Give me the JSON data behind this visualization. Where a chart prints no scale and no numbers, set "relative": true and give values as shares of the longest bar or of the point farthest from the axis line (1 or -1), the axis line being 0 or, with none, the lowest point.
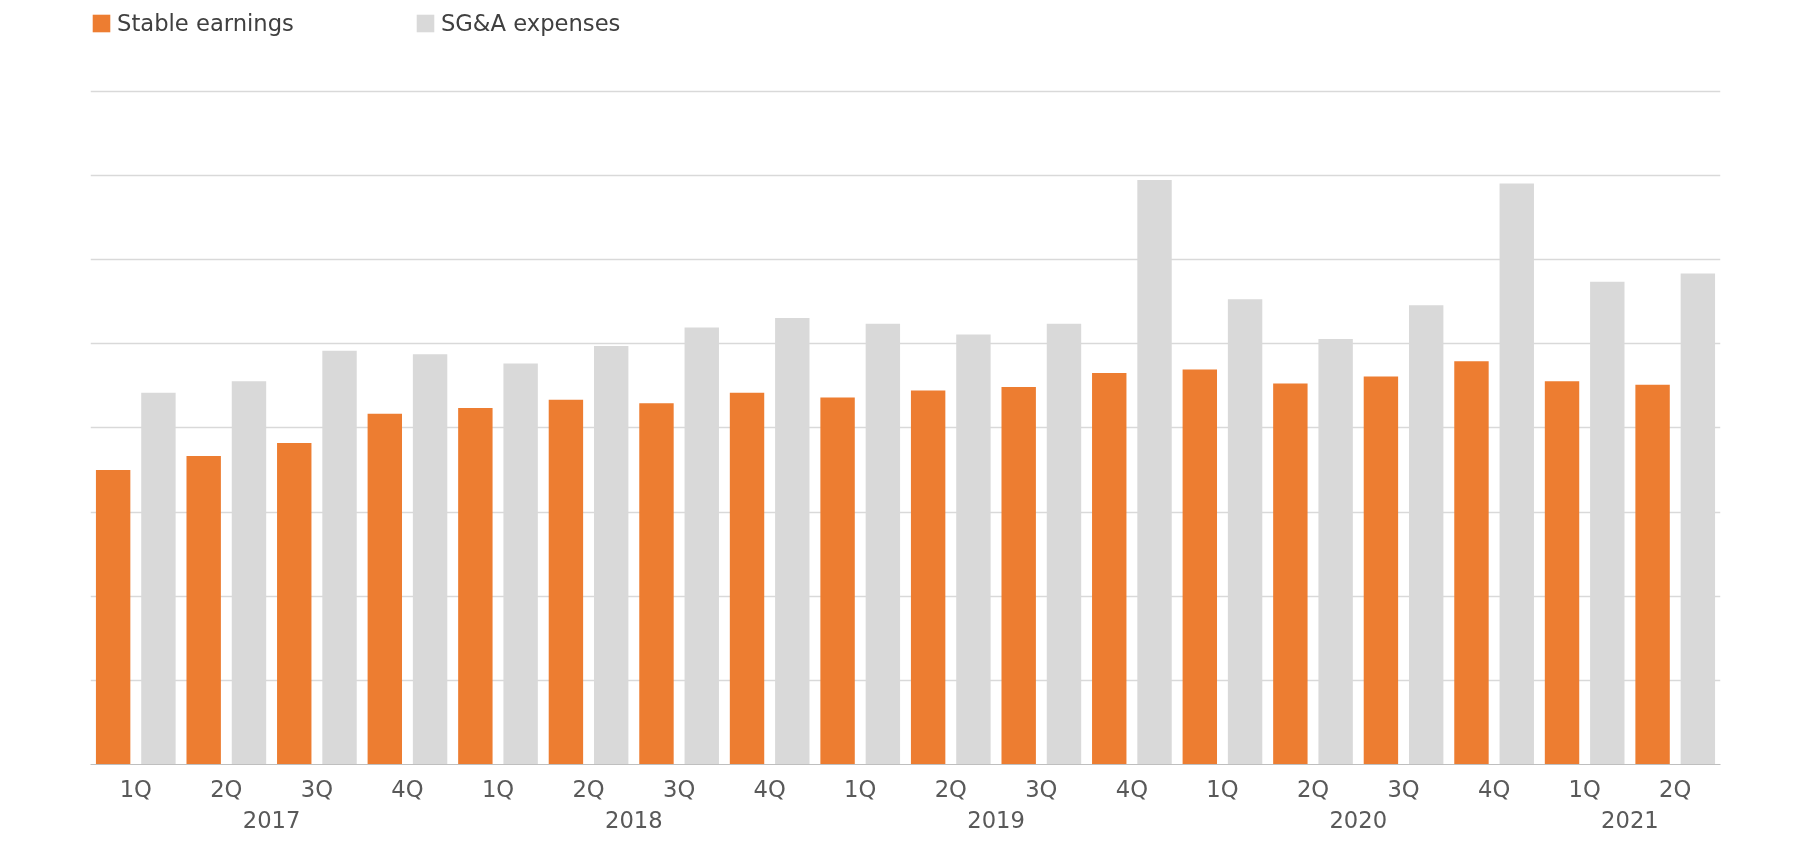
{
  "chart_data": {
    "type": "bar",
    "relative": true,
    "grid": "y",
    "legend": "top left",
    "categories": [
      "1Q",
      "2Q",
      "3Q",
      "4Q",
      "1Q",
      "2Q",
      "3Q",
      "4Q",
      "1Q",
      "2Q",
      "3Q",
      "4Q",
      "1Q",
      "2Q",
      "3Q",
      "4Q",
      "1Q",
      "2Q"
    ],
    "annotations": [
      "2017",
      "2018",
      "2019",
      "2020",
      "2021"
    ],
    "series": [
      {
        "name": "Stable earnings",
        "color": "#ed7d31",
        "values": [
          0.504,
          0.528,
          0.55,
          0.6,
          0.61,
          0.624,
          0.618,
          0.636,
          0.628,
          0.64,
          0.646,
          0.67,
          0.676,
          0.652,
          0.664,
          0.69,
          0.656,
          0.65
        ]
      },
      {
        "name": "SG&A expenses",
        "color": "#d9d9d9",
        "values": [
          0.636,
          0.656,
          0.708,
          0.702,
          0.686,
          0.716,
          0.748,
          0.764,
          0.754,
          0.736,
          0.754,
          1,
          0.796,
          0.728,
          0.786,
          0.994,
          0.826,
          0.84
        ]
      }
    ]
  }
}
